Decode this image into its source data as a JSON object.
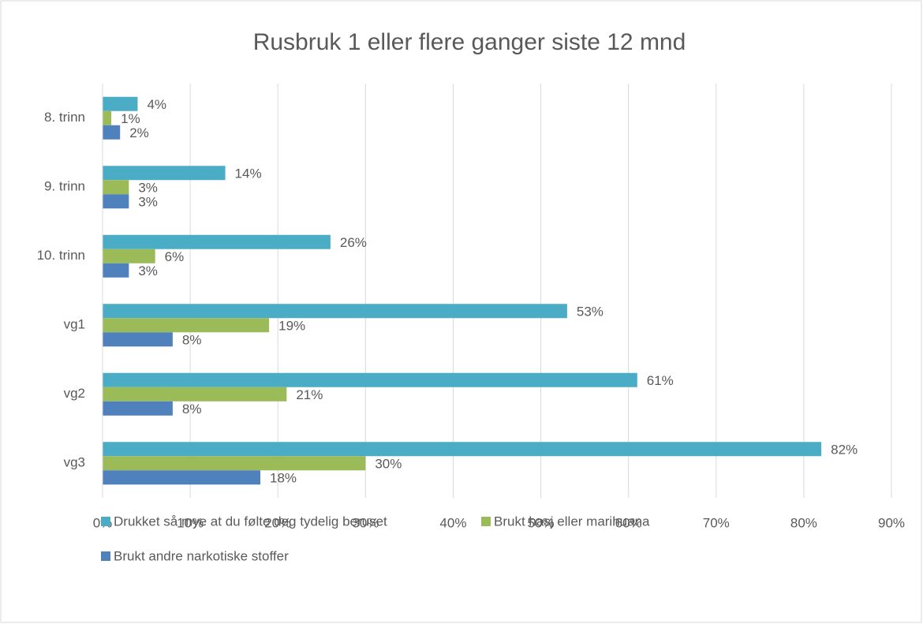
{
  "chart_data": {
    "type": "bar",
    "orientation": "horizontal",
    "title": "Rusbruk 1 eller flere ganger siste 12 mnd",
    "categories": [
      "8. trinn",
      "9. trinn",
      "10. trinn",
      "vg1",
      "vg2",
      "vg3"
    ],
    "series": [
      {
        "name": "Drukket så mye at du følte deg tydelig beruset",
        "color": "#4bacc6",
        "values": [
          4,
          14,
          26,
          53,
          61,
          82
        ],
        "value_labels": [
          "4%",
          "14%",
          "26%",
          "53%",
          "61%",
          "82%"
        ]
      },
      {
        "name": "Brukt hasj eller marihuana",
        "color": "#9bbb59",
        "values": [
          1,
          3,
          6,
          19,
          21,
          30
        ],
        "value_labels": [
          "1%",
          "3%",
          "6%",
          "19%",
          "21%",
          "30%"
        ]
      },
      {
        "name": "Brukt andre narkotiske stoffer",
        "color": "#4f81bd",
        "values": [
          2,
          3,
          3,
          8,
          8,
          18
        ],
        "value_labels": [
          "2%",
          "3%",
          "3%",
          "8%",
          "8%",
          "18%"
        ]
      }
    ],
    "xlim": [
      0,
      90
    ],
    "xticks": [
      {
        "value": 0,
        "label": "0%"
      },
      {
        "value": 10,
        "label": "10%"
      },
      {
        "value": 20,
        "label": "20%"
      },
      {
        "value": 30,
        "label": "30%"
      },
      {
        "value": 40,
        "label": "40%"
      },
      {
        "value": 50,
        "label": "50%"
      },
      {
        "value": 60,
        "label": "60%"
      },
      {
        "value": 70,
        "label": "70%"
      },
      {
        "value": 80,
        "label": "80%"
      },
      {
        "value": 90,
        "label": "90%"
      }
    ],
    "grid": true,
    "legend": "bottom"
  }
}
